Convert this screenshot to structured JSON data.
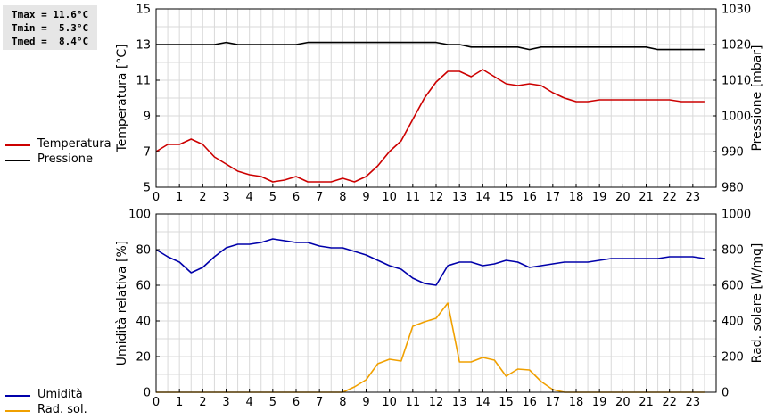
{
  "stats": {
    "tmax": "Tmax = 11.6°C",
    "tmin": "Tmin =  5.3°C",
    "tmed": "Tmed =  8.4°C"
  },
  "legend_top": [
    {
      "label": "Temperatura",
      "color": "#cc0000"
    },
    {
      "label": "Pressione",
      "color": "#000000"
    }
  ],
  "legend_bottom": [
    {
      "label": "Umidità",
      "color": "#0000aa"
    },
    {
      "label": "Rad. sol.",
      "color": "#f0a000"
    }
  ],
  "chart_data": [
    {
      "type": "line",
      "x": [
        0,
        0.5,
        1,
        1.5,
        2,
        2.5,
        3,
        3.5,
        4,
        4.5,
        5,
        5.5,
        6,
        6.5,
        7,
        7.5,
        8,
        8.5,
        9,
        9.5,
        10,
        10.5,
        11,
        11.5,
        12,
        12.5,
        13,
        13.5,
        14,
        14.5,
        15,
        15.5,
        16,
        16.5,
        17,
        17.5,
        18,
        18.5,
        19,
        19.5,
        20,
        20.5,
        21,
        21.5,
        22,
        22.5,
        23,
        23.5
      ],
      "xlim": [
        0,
        24
      ],
      "xticks": [
        "0",
        "1",
        "2",
        "3",
        "4",
        "5",
        "6",
        "7",
        "8",
        "9",
        "10",
        "11",
        "12",
        "13",
        "14",
        "15",
        "16",
        "17",
        "18",
        "19",
        "20",
        "21",
        "22",
        "23"
      ],
      "ylabel": "Temperatura [°C]",
      "ylim": [
        5,
        15
      ],
      "yticks": [
        "5",
        "7",
        "9",
        "11",
        "13",
        "15"
      ],
      "y2label": "Pressione [mbar]",
      "y2lim": [
        980,
        1030
      ],
      "y2ticks": [
        "980",
        "990",
        "1000",
        "1010",
        "1020",
        "1030"
      ],
      "grid": true,
      "series": [
        {
          "name": "Temperatura",
          "axis": "left",
          "color": "#cc0000",
          "values": [
            7.0,
            7.4,
            7.4,
            7.7,
            7.4,
            6.7,
            6.3,
            5.9,
            5.7,
            5.6,
            5.3,
            5.4,
            5.6,
            5.3,
            5.3,
            5.3,
            5.5,
            5.3,
            5.6,
            6.2,
            7.0,
            7.6,
            8.8,
            10.0,
            10.9,
            11.5,
            11.5,
            11.2,
            11.6,
            11.2,
            10.8,
            10.7,
            10.8,
            10.7,
            10.3,
            10.0,
            9.8,
            9.8,
            9.9,
            9.9,
            9.9,
            9.9,
            9.9,
            9.9,
            9.9,
            9.8,
            9.8,
            9.8
          ]
        },
        {
          "name": "Pressione",
          "axis": "right",
          "color": "#000000",
          "values": [
            1020,
            1020,
            1020,
            1020,
            1020,
            1020,
            1020.6,
            1020,
            1020,
            1020,
            1020,
            1020,
            1020,
            1020.6,
            1020.6,
            1020.6,
            1020.6,
            1020.6,
            1020.6,
            1020.6,
            1020.6,
            1020.6,
            1020.6,
            1020.6,
            1020.6,
            1020,
            1020,
            1019.3,
            1019.3,
            1019.3,
            1019.3,
            1019.3,
            1018.6,
            1019.3,
            1019.3,
            1019.3,
            1019.3,
            1019.3,
            1019.3,
            1019.3,
            1019.3,
            1019.3,
            1019.3,
            1018.6,
            1018.6,
            1018.6,
            1018.6,
            1018.6
          ]
        }
      ]
    },
    {
      "type": "line",
      "x": [
        0,
        0.5,
        1,
        1.5,
        2,
        2.5,
        3,
        3.5,
        4,
        4.5,
        5,
        5.5,
        6,
        6.5,
        7,
        7.5,
        8,
        8.5,
        9,
        9.5,
        10,
        10.5,
        11,
        11.5,
        12,
        12.5,
        13,
        13.5,
        14,
        14.5,
        15,
        15.5,
        16,
        16.5,
        17,
        17.5,
        18,
        18.5,
        19,
        19.5,
        20,
        20.5,
        21,
        21.5,
        22,
        22.5,
        23,
        23.5
      ],
      "xlim": [
        0,
        24
      ],
      "xticks": [
        "0",
        "1",
        "2",
        "3",
        "4",
        "5",
        "6",
        "7",
        "8",
        "9",
        "10",
        "11",
        "12",
        "13",
        "14",
        "15",
        "16",
        "17",
        "18",
        "19",
        "20",
        "21",
        "22",
        "23"
      ],
      "ylabel": "Umidità relativa [%]",
      "ylim": [
        0,
        100
      ],
      "yticks": [
        "0",
        "20",
        "40",
        "60",
        "80",
        "100"
      ],
      "y2label": "Rad. solare [W/mq]",
      "y2lim": [
        0,
        1000
      ],
      "y2ticks": [
        "0",
        "200",
        "400",
        "600",
        "800",
        "1000"
      ],
      "grid": true,
      "series": [
        {
          "name": "Umidità",
          "axis": "left",
          "color": "#0000aa",
          "values": [
            80,
            76,
            73,
            67,
            70,
            76,
            81,
            83,
            83,
            84,
            86,
            85,
            84,
            84,
            82,
            81,
            81,
            79,
            77,
            74,
            71,
            69,
            64,
            61,
            60,
            71,
            73,
            73,
            71,
            72,
            74,
            73,
            70,
            71,
            72,
            73,
            73,
            73,
            74,
            75,
            75,
            75,
            75,
            75,
            76,
            76,
            76,
            75
          ]
        },
        {
          "name": "Rad. sol.",
          "axis": "right",
          "color": "#f0a000",
          "values": [
            0,
            0,
            0,
            0,
            0,
            0,
            0,
            0,
            0,
            0,
            0,
            0,
            0,
            0,
            0,
            0,
            0,
            30,
            70,
            160,
            185,
            175,
            370,
            395,
            415,
            500,
            170,
            170,
            195,
            180,
            90,
            130,
            125,
            60,
            15,
            0,
            0,
            0,
            0,
            0,
            0,
            0,
            0,
            0,
            0,
            0,
            0,
            0
          ]
        }
      ]
    }
  ]
}
